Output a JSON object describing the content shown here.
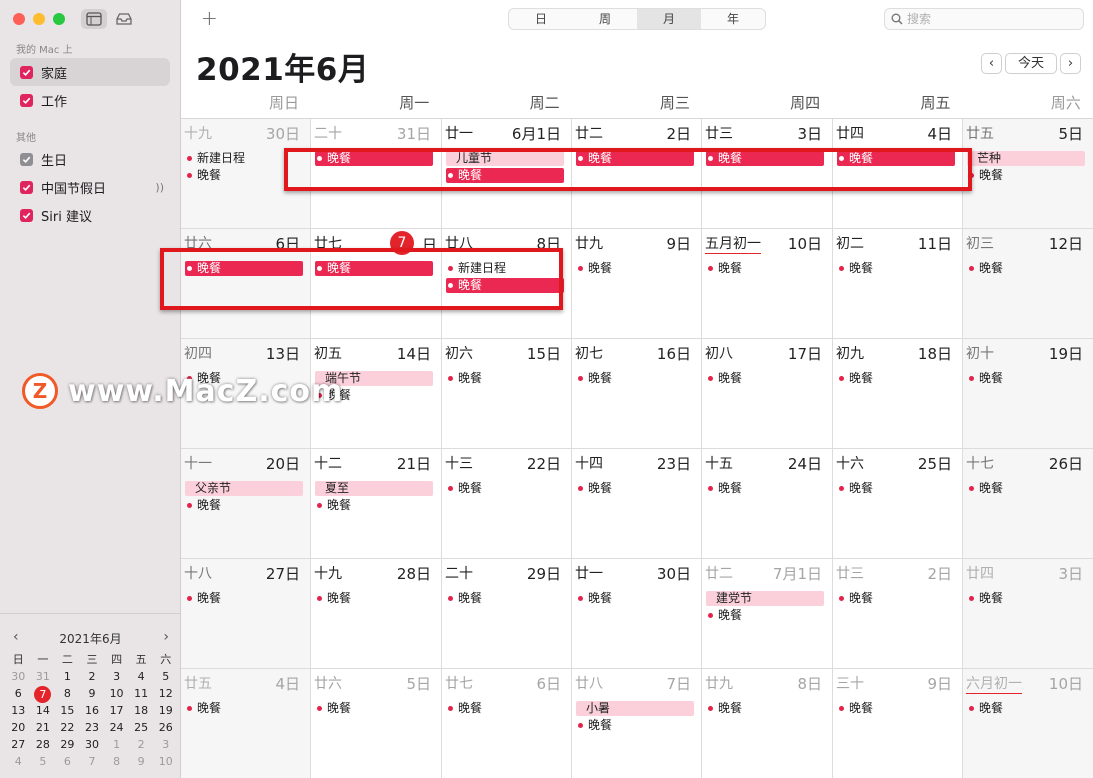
{
  "sidebar": {
    "section_mac": "我的 Mac 上",
    "calendars_mac": [
      {
        "label": "家庭",
        "color": "#e0245e",
        "selected": true
      },
      {
        "label": "工作",
        "color": "#e0245e",
        "selected": false
      }
    ],
    "section_other": "其他",
    "calendars_other": [
      {
        "label": "生日",
        "color": "#8e8e93"
      },
      {
        "label": "中国节假日",
        "color": "#e0245e",
        "extra_icon": "broadcast-icon"
      },
      {
        "label": "Siri 建议",
        "color": "#e0245e"
      }
    ]
  },
  "mini_calendar": {
    "title": "2021年6月",
    "prev": "‹",
    "next": "›",
    "weekdays": [
      "日",
      "一",
      "二",
      "三",
      "四",
      "五",
      "六"
    ],
    "weeks": [
      [
        "30",
        "31",
        "1",
        "2",
        "3",
        "4",
        "5"
      ],
      [
        "6",
        "7",
        "8",
        "9",
        "10",
        "11",
        "12"
      ],
      [
        "13",
        "14",
        "15",
        "16",
        "17",
        "18",
        "19"
      ],
      [
        "20",
        "21",
        "22",
        "23",
        "24",
        "25",
        "26"
      ],
      [
        "27",
        "28",
        "29",
        "30",
        "1",
        "2",
        "3"
      ],
      [
        "4",
        "5",
        "6",
        "7",
        "8",
        "9",
        "10"
      ]
    ],
    "today": "7"
  },
  "toolbar": {
    "add": "+",
    "views": [
      "日",
      "周",
      "月",
      "年"
    ],
    "active_view": "月",
    "search_placeholder": "搜索"
  },
  "header": {
    "title": "2021年6月",
    "prev": "‹",
    "today": "今天",
    "next": "›"
  },
  "weekdays": [
    "周日",
    "周一",
    "周二",
    "周三",
    "周四",
    "周五",
    "周六"
  ],
  "weeks": [
    [
      {
        "lunar": "十九",
        "day": "30日",
        "other": true,
        "events": [
          {
            "t": "新建日程",
            "k": "dot"
          },
          {
            "t": "晚餐",
            "k": "dot"
          }
        ]
      },
      {
        "lunar": "二十",
        "day": "31日",
        "other": true,
        "events": [
          {
            "t": "晚餐",
            "k": "filled"
          }
        ]
      },
      {
        "lunar": "廿一",
        "day": "6月1日",
        "events": [
          {
            "t": "儿童节",
            "k": "allday"
          },
          {
            "t": "晚餐",
            "k": "filled"
          }
        ]
      },
      {
        "lunar": "廿二",
        "day": "2日",
        "events": [
          {
            "t": "晚餐",
            "k": "filled"
          }
        ]
      },
      {
        "lunar": "廿三",
        "day": "3日",
        "events": [
          {
            "t": "晚餐",
            "k": "filled"
          }
        ]
      },
      {
        "lunar": "廿四",
        "day": "4日",
        "events": [
          {
            "t": "晚餐",
            "k": "filled"
          }
        ]
      },
      {
        "lunar": "廿五",
        "day": "5日",
        "events": [
          {
            "t": "芒种",
            "k": "allday"
          },
          {
            "t": "晚餐",
            "k": "dot"
          }
        ]
      }
    ],
    [
      {
        "lunar": "廿六",
        "day": "6日",
        "events": [
          {
            "t": "晚餐",
            "k": "filled"
          }
        ]
      },
      {
        "lunar": "廿七",
        "day": "日",
        "today": "7",
        "events": [
          {
            "t": "晚餐",
            "k": "filled"
          }
        ]
      },
      {
        "lunar": "廿八",
        "day": "8日",
        "events": [
          {
            "t": "新建日程",
            "k": "dot"
          },
          {
            "t": "晚餐",
            "k": "filled"
          }
        ]
      },
      {
        "lunar": "廿九",
        "day": "9日",
        "events": [
          {
            "t": "晚餐",
            "k": "dot"
          }
        ]
      },
      {
        "lunar": "五月初一",
        "day": "10日",
        "underline": true,
        "events": [
          {
            "t": "晚餐",
            "k": "dot"
          }
        ]
      },
      {
        "lunar": "初二",
        "day": "11日",
        "events": [
          {
            "t": "晚餐",
            "k": "dot"
          }
        ]
      },
      {
        "lunar": "初三",
        "day": "12日",
        "events": [
          {
            "t": "晚餐",
            "k": "dot"
          }
        ]
      }
    ],
    [
      {
        "lunar": "初四",
        "day": "13日",
        "events": [
          {
            "t": "晚餐",
            "k": "dot"
          }
        ]
      },
      {
        "lunar": "初五",
        "day": "14日",
        "events": [
          {
            "t": "端午节",
            "k": "allday"
          },
          {
            "t": "晚餐",
            "k": "dot"
          }
        ]
      },
      {
        "lunar": "初六",
        "day": "15日",
        "events": [
          {
            "t": "晚餐",
            "k": "dot"
          }
        ]
      },
      {
        "lunar": "初七",
        "day": "16日",
        "events": [
          {
            "t": "晚餐",
            "k": "dot"
          }
        ]
      },
      {
        "lunar": "初八",
        "day": "17日",
        "events": [
          {
            "t": "晚餐",
            "k": "dot"
          }
        ]
      },
      {
        "lunar": "初九",
        "day": "18日",
        "events": [
          {
            "t": "晚餐",
            "k": "dot"
          }
        ]
      },
      {
        "lunar": "初十",
        "day": "19日",
        "events": [
          {
            "t": "晚餐",
            "k": "dot"
          }
        ]
      }
    ],
    [
      {
        "lunar": "十一",
        "day": "20日",
        "events": [
          {
            "t": "父亲节",
            "k": "allday"
          },
          {
            "t": "晚餐",
            "k": "dot"
          }
        ]
      },
      {
        "lunar": "十二",
        "day": "21日",
        "events": [
          {
            "t": "夏至",
            "k": "allday"
          },
          {
            "t": "晚餐",
            "k": "dot"
          }
        ]
      },
      {
        "lunar": "十三",
        "day": "22日",
        "events": [
          {
            "t": "晚餐",
            "k": "dot"
          }
        ]
      },
      {
        "lunar": "十四",
        "day": "23日",
        "events": [
          {
            "t": "晚餐",
            "k": "dot"
          }
        ]
      },
      {
        "lunar": "十五",
        "day": "24日",
        "events": [
          {
            "t": "晚餐",
            "k": "dot"
          }
        ]
      },
      {
        "lunar": "十六",
        "day": "25日",
        "events": [
          {
            "t": "晚餐",
            "k": "dot"
          }
        ]
      },
      {
        "lunar": "十七",
        "day": "26日",
        "events": [
          {
            "t": "晚餐",
            "k": "dot"
          }
        ]
      }
    ],
    [
      {
        "lunar": "十八",
        "day": "27日",
        "events": [
          {
            "t": "晚餐",
            "k": "dot"
          }
        ]
      },
      {
        "lunar": "十九",
        "day": "28日",
        "events": [
          {
            "t": "晚餐",
            "k": "dot"
          }
        ]
      },
      {
        "lunar": "二十",
        "day": "29日",
        "events": [
          {
            "t": "晚餐",
            "k": "dot"
          }
        ]
      },
      {
        "lunar": "廿一",
        "day": "30日",
        "events": [
          {
            "t": "晚餐",
            "k": "dot"
          }
        ]
      },
      {
        "lunar": "廿二",
        "day": "7月1日",
        "other": true,
        "events": [
          {
            "t": "建党节",
            "k": "allday"
          },
          {
            "t": "晚餐",
            "k": "dot"
          }
        ]
      },
      {
        "lunar": "廿三",
        "day": "2日",
        "other": true,
        "events": [
          {
            "t": "晚餐",
            "k": "dot"
          }
        ]
      },
      {
        "lunar": "廿四",
        "day": "3日",
        "other": true,
        "events": [
          {
            "t": "晚餐",
            "k": "dot"
          }
        ]
      }
    ],
    [
      {
        "lunar": "廿五",
        "day": "4日",
        "other": true,
        "events": [
          {
            "t": "晚餐",
            "k": "dot"
          }
        ]
      },
      {
        "lunar": "廿六",
        "day": "5日",
        "other": true,
        "events": [
          {
            "t": "晚餐",
            "k": "dot"
          }
        ]
      },
      {
        "lunar": "廿七",
        "day": "6日",
        "other": true,
        "events": [
          {
            "t": "晚餐",
            "k": "dot"
          }
        ]
      },
      {
        "lunar": "廿八",
        "day": "7日",
        "other": true,
        "events": [
          {
            "t": "小暑",
            "k": "allday"
          },
          {
            "t": "晚餐",
            "k": "dot"
          }
        ]
      },
      {
        "lunar": "廿九",
        "day": "8日",
        "other": true,
        "events": [
          {
            "t": "晚餐",
            "k": "dot"
          }
        ]
      },
      {
        "lunar": "三十",
        "day": "9日",
        "other": true,
        "events": [
          {
            "t": "晚餐",
            "k": "dot"
          }
        ]
      },
      {
        "lunar": "六月初一",
        "day": "10日",
        "other": true,
        "underline": true,
        "events": [
          {
            "t": "晚餐",
            "k": "dot"
          }
        ]
      }
    ]
  ],
  "watermark": {
    "logo": "Z",
    "text": "www.MacZ.com"
  },
  "colors": {
    "accent": "#e3242b",
    "event": "#eb2852",
    "holiday_bg": "#fbd0da",
    "highlight_box": "#e0181d"
  }
}
